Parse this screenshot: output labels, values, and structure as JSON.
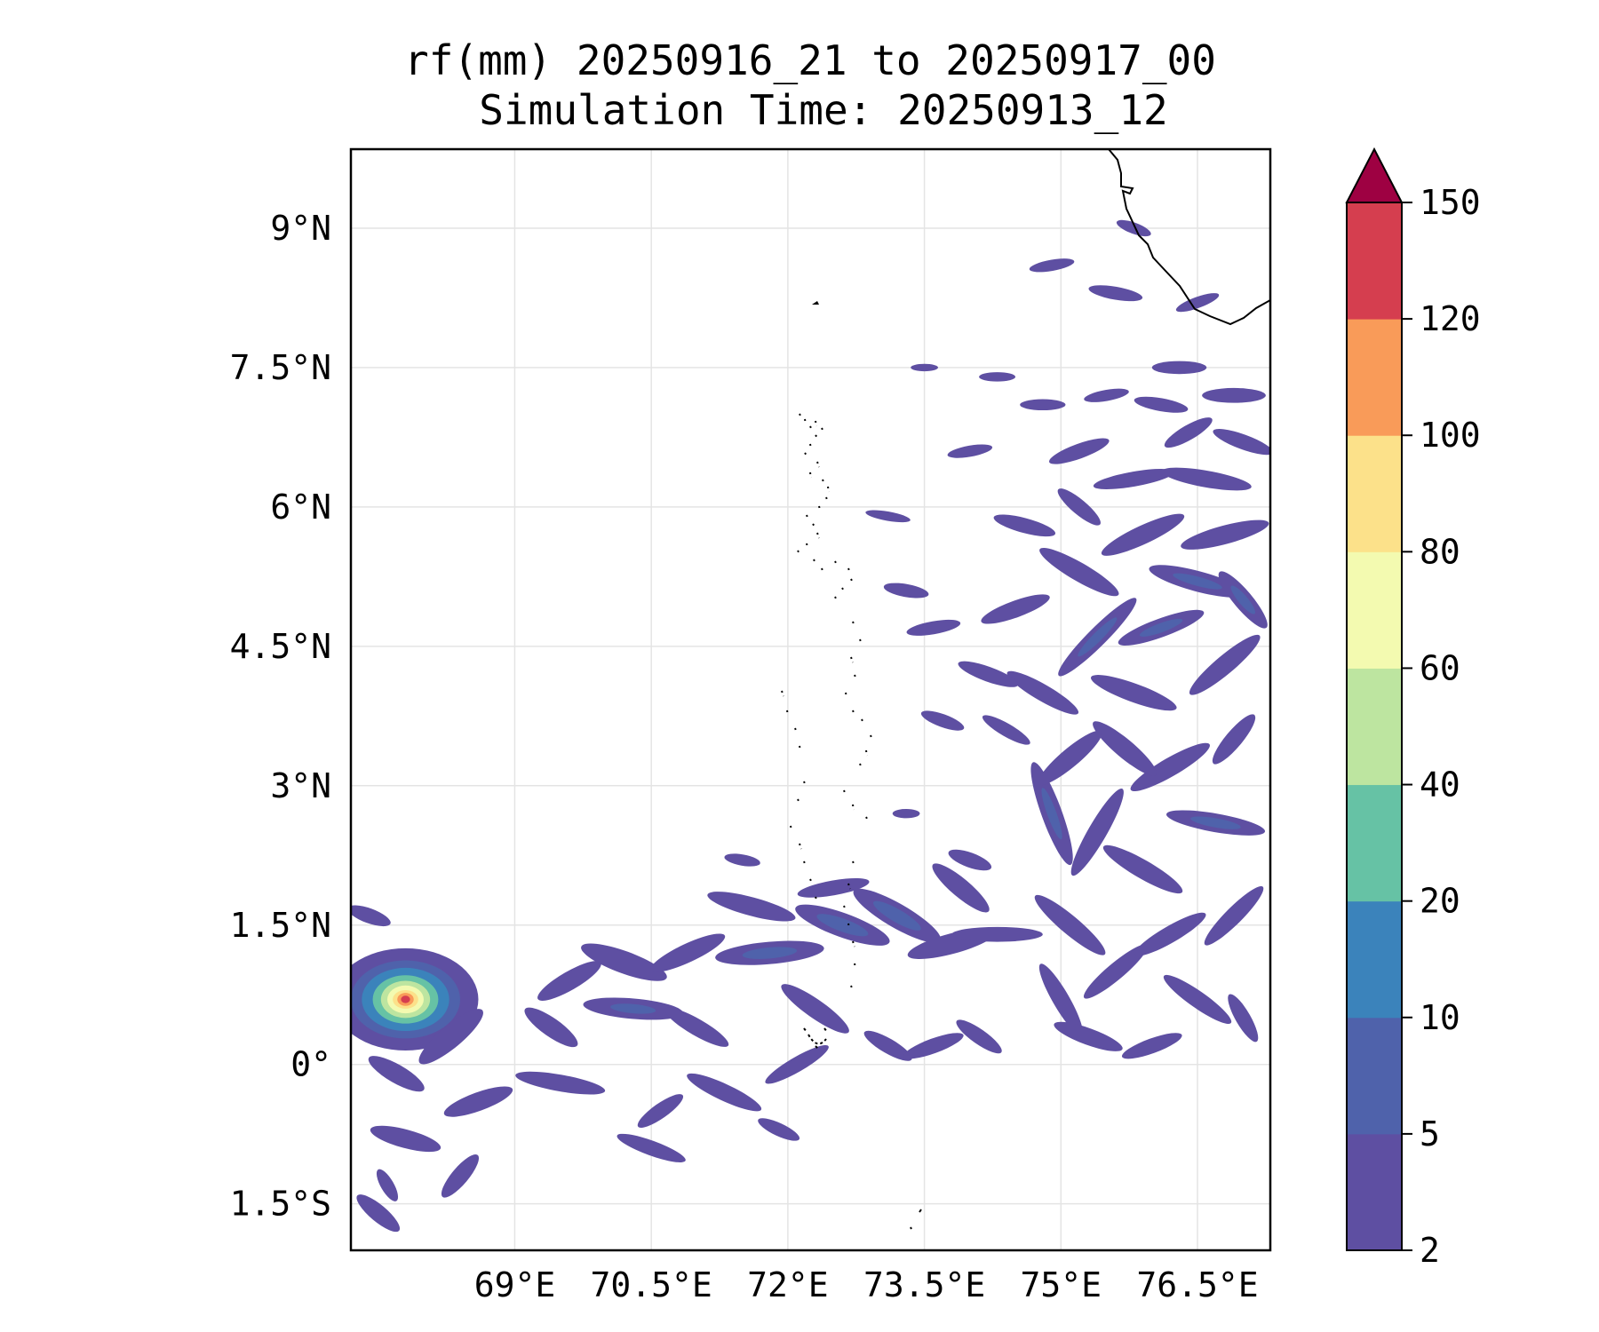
{
  "chart_data": {
    "type": "heatmap",
    "title": "rf(mm) 20250916_21 to 20250917_00",
    "subtitle": "Simulation Time: 20250913_12",
    "projection": "lat-lon map",
    "xlim": [
      67.2,
      77.3
    ],
    "ylim": [
      -2.0,
      9.85
    ],
    "x_ticks": [
      {
        "value": 69.0,
        "label": "69°E"
      },
      {
        "value": 70.5,
        "label": "70.5°E"
      },
      {
        "value": 72.0,
        "label": "72°E"
      },
      {
        "value": 73.5,
        "label": "73.5°E"
      },
      {
        "value": 75.0,
        "label": "75°E"
      },
      {
        "value": 76.5,
        "label": "76.5°E"
      }
    ],
    "y_ticks": [
      {
        "value": 9.0,
        "label": "9°N"
      },
      {
        "value": 7.5,
        "label": "7.5°N"
      },
      {
        "value": 6.0,
        "label": "6°N"
      },
      {
        "value": 4.5,
        "label": "4.5°N"
      },
      {
        "value": 3.0,
        "label": "3°N"
      },
      {
        "value": 1.5,
        "label": "1.5°N"
      },
      {
        "value": 0.0,
        "label": "0°"
      },
      {
        "value": -1.5,
        "label": "1.5°S"
      }
    ],
    "grid": true,
    "colorbar": {
      "levels": [
        2,
        5,
        10,
        20,
        40,
        60,
        80,
        100,
        120,
        150
      ],
      "labels": [
        "2",
        "5",
        "10",
        "20",
        "40",
        "60",
        "80",
        "100",
        "120",
        "150"
      ],
      "colors": [
        "#5e4fa2",
        "#4f62ab",
        "#3b83bb",
        "#66c2a5",
        "#bde5a0",
        "#f3fab0",
        "#fce18a",
        "#f99b59",
        "#d53e4f"
      ],
      "extend_color": "#9e0142",
      "extend": "max",
      "placement": "right"
    },
    "max_rainfall_center": {
      "lon": 67.8,
      "lat": 0.7,
      "value_range": "120-150"
    },
    "rain_features": [
      {
        "lon": 67.8,
        "lat": 0.7,
        "rx": 0.8,
        "ry": 0.55,
        "rot": 0,
        "level": 0
      },
      {
        "lon": 67.8,
        "lat": 0.7,
        "rx": 0.6,
        "ry": 0.42,
        "rot": 0,
        "level": 1
      },
      {
        "lon": 67.8,
        "lat": 0.7,
        "rx": 0.48,
        "ry": 0.34,
        "rot": 0,
        "level": 2
      },
      {
        "lon": 67.8,
        "lat": 0.7,
        "rx": 0.36,
        "ry": 0.26,
        "rot": 0,
        "level": 3
      },
      {
        "lon": 67.8,
        "lat": 0.7,
        "rx": 0.27,
        "ry": 0.2,
        "rot": 0,
        "level": 4
      },
      {
        "lon": 67.8,
        "lat": 0.7,
        "rx": 0.2,
        "ry": 0.15,
        "rot": 0,
        "level": 5
      },
      {
        "lon": 67.8,
        "lat": 0.7,
        "rx": 0.14,
        "ry": 0.1,
        "rot": 0,
        "level": 6
      },
      {
        "lon": 67.8,
        "lat": 0.7,
        "rx": 0.09,
        "ry": 0.07,
        "rot": 0,
        "level": 7
      },
      {
        "lon": 67.8,
        "lat": 0.7,
        "rx": 0.05,
        "ry": 0.04,
        "rot": 0,
        "level": 8
      },
      {
        "lon": 68.3,
        "lat": 0.3,
        "rx": 0.45,
        "ry": 0.12,
        "rot": -40,
        "level": 0
      },
      {
        "lon": 67.7,
        "lat": -0.1,
        "rx": 0.35,
        "ry": 0.1,
        "rot": 30,
        "level": 0
      },
      {
        "lon": 68.6,
        "lat": -0.4,
        "rx": 0.4,
        "ry": 0.1,
        "rot": -20,
        "level": 0
      },
      {
        "lon": 67.8,
        "lat": -0.8,
        "rx": 0.4,
        "ry": 0.1,
        "rot": 15,
        "level": 0
      },
      {
        "lon": 68.4,
        "lat": -1.2,
        "rx": 0.3,
        "ry": 0.09,
        "rot": -50,
        "level": 0
      },
      {
        "lon": 67.5,
        "lat": -1.6,
        "rx": 0.3,
        "ry": 0.09,
        "rot": 40,
        "level": 0
      },
      {
        "lon": 69.4,
        "lat": 0.4,
        "rx": 0.35,
        "ry": 0.1,
        "rot": 35,
        "level": 0
      },
      {
        "lon": 69.6,
        "lat": 0.9,
        "rx": 0.4,
        "ry": 0.1,
        "rot": -30,
        "level": 0
      },
      {
        "lon": 69.5,
        "lat": -0.2,
        "rx": 0.5,
        "ry": 0.09,
        "rot": 10,
        "level": 0
      },
      {
        "lon": 70.2,
        "lat": 1.1,
        "rx": 0.5,
        "ry": 0.12,
        "rot": 20,
        "level": 0
      },
      {
        "lon": 70.3,
        "lat": 0.6,
        "rx": 0.55,
        "ry": 0.11,
        "rot": 5,
        "level": 0
      },
      {
        "lon": 70.3,
        "lat": 0.6,
        "rx": 0.25,
        "ry": 0.05,
        "rot": 5,
        "level": 1
      },
      {
        "lon": 70.9,
        "lat": 1.2,
        "rx": 0.45,
        "ry": 0.1,
        "rot": -25,
        "level": 0
      },
      {
        "lon": 71.0,
        "lat": 0.4,
        "rx": 0.4,
        "ry": 0.09,
        "rot": 30,
        "level": 0
      },
      {
        "lon": 71.3,
        "lat": -0.3,
        "rx": 0.45,
        "ry": 0.09,
        "rot": 25,
        "level": 0
      },
      {
        "lon": 70.6,
        "lat": -0.5,
        "rx": 0.3,
        "ry": 0.08,
        "rot": -35,
        "level": 0
      },
      {
        "lon": 70.5,
        "lat": -0.9,
        "rx": 0.4,
        "ry": 0.08,
        "rot": 20,
        "level": 0
      },
      {
        "lon": 71.6,
        "lat": 1.7,
        "rx": 0.5,
        "ry": 0.1,
        "rot": 15,
        "level": 0
      },
      {
        "lon": 71.8,
        "lat": 1.2,
        "rx": 0.6,
        "ry": 0.12,
        "rot": -5,
        "level": 0
      },
      {
        "lon": 71.8,
        "lat": 1.2,
        "rx": 0.3,
        "ry": 0.06,
        "rot": -5,
        "level": 1
      },
      {
        "lon": 72.3,
        "lat": 0.6,
        "rx": 0.45,
        "ry": 0.1,
        "rot": 35,
        "level": 0
      },
      {
        "lon": 72.1,
        "lat": 0.0,
        "rx": 0.4,
        "ry": 0.08,
        "rot": -30,
        "level": 0
      },
      {
        "lon": 72.6,
        "lat": 1.5,
        "rx": 0.55,
        "ry": 0.13,
        "rot": 20,
        "level": 0
      },
      {
        "lon": 72.6,
        "lat": 1.5,
        "rx": 0.3,
        "ry": 0.07,
        "rot": 20,
        "level": 1
      },
      {
        "lon": 72.5,
        "lat": 1.9,
        "rx": 0.4,
        "ry": 0.08,
        "rot": -10,
        "level": 0
      },
      {
        "lon": 73.2,
        "lat": 1.6,
        "rx": 0.55,
        "ry": 0.13,
        "rot": 30,
        "level": 0
      },
      {
        "lon": 73.2,
        "lat": 1.6,
        "rx": 0.3,
        "ry": 0.07,
        "rot": 30,
        "level": 1
      },
      {
        "lon": 73.1,
        "lat": 0.2,
        "rx": 0.3,
        "ry": 0.08,
        "rot": 30,
        "level": 0
      },
      {
        "lon": 73.6,
        "lat": 0.2,
        "rx": 0.35,
        "ry": 0.08,
        "rot": -20,
        "level": 0
      },
      {
        "lon": 73.8,
        "lat": 1.3,
        "rx": 0.5,
        "ry": 0.11,
        "rot": -15,
        "level": 0
      },
      {
        "lon": 73.9,
        "lat": 1.9,
        "rx": 0.4,
        "ry": 0.1,
        "rot": 40,
        "level": 0
      },
      {
        "lon": 74.3,
        "lat": 1.4,
        "rx": 0.5,
        "ry": 0.08,
        "rot": 0,
        "level": 0
      },
      {
        "lon": 74.1,
        "lat": 0.3,
        "rx": 0.3,
        "ry": 0.08,
        "rot": 35,
        "level": 0
      },
      {
        "lon": 74.0,
        "lat": 2.2,
        "rx": 0.25,
        "ry": 0.08,
        "rot": 20,
        "level": 0
      },
      {
        "lon": 74.9,
        "lat": 2.7,
        "rx": 0.6,
        "ry": 0.11,
        "rot": 70,
        "level": 0
      },
      {
        "lon": 74.9,
        "lat": 2.7,
        "rx": 0.3,
        "ry": 0.05,
        "rot": 70,
        "level": 1
      },
      {
        "lon": 75.4,
        "lat": 2.5,
        "rx": 0.55,
        "ry": 0.1,
        "rot": -60,
        "level": 0
      },
      {
        "lon": 75.1,
        "lat": 1.5,
        "rx": 0.5,
        "ry": 0.1,
        "rot": 40,
        "level": 0
      },
      {
        "lon": 75.0,
        "lat": 0.7,
        "rx": 0.45,
        "ry": 0.09,
        "rot": 60,
        "level": 0
      },
      {
        "lon": 75.3,
        "lat": 0.3,
        "rx": 0.4,
        "ry": 0.09,
        "rot": 20,
        "level": 0
      },
      {
        "lon": 75.6,
        "lat": 1.0,
        "rx": 0.45,
        "ry": 0.09,
        "rot": -40,
        "level": 0
      },
      {
        "lon": 75.9,
        "lat": 2.1,
        "rx": 0.5,
        "ry": 0.1,
        "rot": 30,
        "level": 0
      },
      {
        "lon": 76.2,
        "lat": 1.4,
        "rx": 0.45,
        "ry": 0.09,
        "rot": -30,
        "level": 0
      },
      {
        "lon": 76.5,
        "lat": 0.7,
        "rx": 0.45,
        "ry": 0.09,
        "rot": 35,
        "level": 0
      },
      {
        "lon": 76.9,
        "lat": 1.6,
        "rx": 0.45,
        "ry": 0.09,
        "rot": -45,
        "level": 0
      },
      {
        "lon": 76.7,
        "lat": 2.6,
        "rx": 0.55,
        "ry": 0.1,
        "rot": 10,
        "level": 0
      },
      {
        "lon": 76.7,
        "lat": 2.6,
        "rx": 0.28,
        "ry": 0.05,
        "rot": 10,
        "level": 1
      },
      {
        "lon": 77.0,
        "lat": 0.5,
        "rx": 0.3,
        "ry": 0.08,
        "rot": 60,
        "level": 0
      },
      {
        "lon": 76.2,
        "lat": 3.2,
        "rx": 0.5,
        "ry": 0.1,
        "rot": -30,
        "level": 0
      },
      {
        "lon": 75.7,
        "lat": 3.4,
        "rx": 0.45,
        "ry": 0.1,
        "rot": 40,
        "level": 0
      },
      {
        "lon": 76.9,
        "lat": 3.5,
        "rx": 0.35,
        "ry": 0.09,
        "rot": -50,
        "level": 0
      },
      {
        "lon": 75.1,
        "lat": 3.3,
        "rx": 0.45,
        "ry": 0.1,
        "rot": -40,
        "level": 0
      },
      {
        "lon": 74.8,
        "lat": 4.0,
        "rx": 0.45,
        "ry": 0.09,
        "rot": 30,
        "level": 0
      },
      {
        "lon": 75.4,
        "lat": 4.6,
        "rx": 0.6,
        "ry": 0.1,
        "rot": -45,
        "level": 0
      },
      {
        "lon": 75.4,
        "lat": 4.6,
        "rx": 0.3,
        "ry": 0.05,
        "rot": -45,
        "level": 1
      },
      {
        "lon": 75.8,
        "lat": 4.0,
        "rx": 0.5,
        "ry": 0.1,
        "rot": 20,
        "level": 0
      },
      {
        "lon": 76.1,
        "lat": 4.7,
        "rx": 0.5,
        "ry": 0.1,
        "rot": -20,
        "level": 0
      },
      {
        "lon": 76.1,
        "lat": 4.7,
        "rx": 0.25,
        "ry": 0.05,
        "rot": -20,
        "level": 1
      },
      {
        "lon": 76.5,
        "lat": 5.2,
        "rx": 0.55,
        "ry": 0.11,
        "rot": 15,
        "level": 0
      },
      {
        "lon": 76.5,
        "lat": 5.2,
        "rx": 0.28,
        "ry": 0.05,
        "rot": 15,
        "level": 1
      },
      {
        "lon": 76.8,
        "lat": 4.3,
        "rx": 0.5,
        "ry": 0.1,
        "rot": -40,
        "level": 0
      },
      {
        "lon": 77.0,
        "lat": 5.0,
        "rx": 0.4,
        "ry": 0.1,
        "rot": 50,
        "level": 0
      },
      {
        "lon": 77.0,
        "lat": 5.0,
        "rx": 0.2,
        "ry": 0.05,
        "rot": 50,
        "level": 1
      },
      {
        "lon": 75.9,
        "lat": 5.7,
        "rx": 0.5,
        "ry": 0.1,
        "rot": -25,
        "level": 0
      },
      {
        "lon": 75.2,
        "lat": 5.3,
        "rx": 0.5,
        "ry": 0.1,
        "rot": 30,
        "level": 0
      },
      {
        "lon": 74.5,
        "lat": 4.9,
        "rx": 0.4,
        "ry": 0.09,
        "rot": -20,
        "level": 0
      },
      {
        "lon": 74.6,
        "lat": 5.8,
        "rx": 0.35,
        "ry": 0.08,
        "rot": 15,
        "level": 0
      },
      {
        "lon": 76.8,
        "lat": 5.7,
        "rx": 0.5,
        "ry": 0.1,
        "rot": -15,
        "level": 0
      },
      {
        "lon": 76.6,
        "lat": 6.3,
        "rx": 0.5,
        "ry": 0.09,
        "rot": 10,
        "level": 0
      },
      {
        "lon": 75.8,
        "lat": 6.3,
        "rx": 0.45,
        "ry": 0.08,
        "rot": -10,
        "level": 0
      },
      {
        "lon": 75.2,
        "lat": 6.0,
        "rx": 0.3,
        "ry": 0.08,
        "rot": 40,
        "level": 0
      },
      {
        "lon": 75.2,
        "lat": 6.6,
        "rx": 0.35,
        "ry": 0.08,
        "rot": -20,
        "level": 0
      },
      {
        "lon": 77.0,
        "lat": 6.7,
        "rx": 0.35,
        "ry": 0.08,
        "rot": 20,
        "level": 0
      },
      {
        "lon": 76.4,
        "lat": 6.8,
        "rx": 0.3,
        "ry": 0.08,
        "rot": -30,
        "level": 0
      },
      {
        "lon": 74.2,
        "lat": 4.2,
        "rx": 0.35,
        "ry": 0.08,
        "rot": 20,
        "level": 0
      },
      {
        "lon": 73.6,
        "lat": 4.7,
        "rx": 0.3,
        "ry": 0.07,
        "rot": -10,
        "level": 0
      },
      {
        "lon": 73.3,
        "lat": 5.1,
        "rx": 0.25,
        "ry": 0.07,
        "rot": 10,
        "level": 0
      },
      {
        "lon": 73.7,
        "lat": 3.7,
        "rx": 0.25,
        "ry": 0.07,
        "rot": 20,
        "level": 0
      },
      {
        "lon": 76.9,
        "lat": 7.2,
        "rx": 0.35,
        "ry": 0.08,
        "rot": 0,
        "level": 0
      },
      {
        "lon": 76.1,
        "lat": 7.1,
        "rx": 0.3,
        "ry": 0.07,
        "rot": 10,
        "level": 0
      },
      {
        "lon": 75.5,
        "lat": 7.2,
        "rx": 0.25,
        "ry": 0.06,
        "rot": -10,
        "level": 0
      },
      {
        "lon": 74.8,
        "lat": 7.1,
        "rx": 0.25,
        "ry": 0.06,
        "rot": 0,
        "level": 0
      },
      {
        "lon": 74.0,
        "lat": 6.6,
        "rx": 0.25,
        "ry": 0.06,
        "rot": -10,
        "level": 0
      },
      {
        "lon": 76.3,
        "lat": 7.5,
        "rx": 0.3,
        "ry": 0.07,
        "rot": 0,
        "level": 0
      },
      {
        "lon": 76.5,
        "lat": 8.2,
        "rx": 0.25,
        "ry": 0.06,
        "rot": -20,
        "level": 0
      },
      {
        "lon": 75.6,
        "lat": 8.3,
        "rx": 0.3,
        "ry": 0.07,
        "rot": 10,
        "level": 0
      },
      {
        "lon": 74.9,
        "lat": 8.6,
        "rx": 0.25,
        "ry": 0.06,
        "rot": -10,
        "level": 0
      },
      {
        "lon": 75.8,
        "lat": 9.0,
        "rx": 0.2,
        "ry": 0.06,
        "rot": 20,
        "level": 0
      },
      {
        "lon": 74.3,
        "lat": 7.4,
        "rx": 0.2,
        "ry": 0.05,
        "rot": 0,
        "level": 0
      },
      {
        "lon": 67.4,
        "lat": 1.6,
        "rx": 0.25,
        "ry": 0.08,
        "rot": 20,
        "level": 0
      },
      {
        "lon": 73.1,
        "lat": 5.9,
        "rx": 0.25,
        "ry": 0.05,
        "rot": 10,
        "level": 0
      },
      {
        "lon": 73.5,
        "lat": 7.5,
        "rx": 0.15,
        "ry": 0.04,
        "rot": 0,
        "level": 0
      },
      {
        "lon": 71.5,
        "lat": 2.2,
        "rx": 0.2,
        "ry": 0.06,
        "rot": 10,
        "level": 0
      },
      {
        "lon": 73.3,
        "lat": 2.7,
        "rx": 0.15,
        "ry": 0.05,
        "rot": 0,
        "level": 0
      },
      {
        "lon": 71.9,
        "lat": -0.7,
        "rx": 0.25,
        "ry": 0.07,
        "rot": 25,
        "level": 0
      },
      {
        "lon": 67.6,
        "lat": -1.3,
        "rx": 0.2,
        "ry": 0.07,
        "rot": 60,
        "level": 0
      },
      {
        "lon": 74.4,
        "lat": 3.6,
        "rx": 0.3,
        "ry": 0.07,
        "rot": 30,
        "level": 0
      },
      {
        "lon": 76.0,
        "lat": 0.2,
        "rx": 0.35,
        "ry": 0.08,
        "rot": -20,
        "level": 0
      }
    ]
  }
}
